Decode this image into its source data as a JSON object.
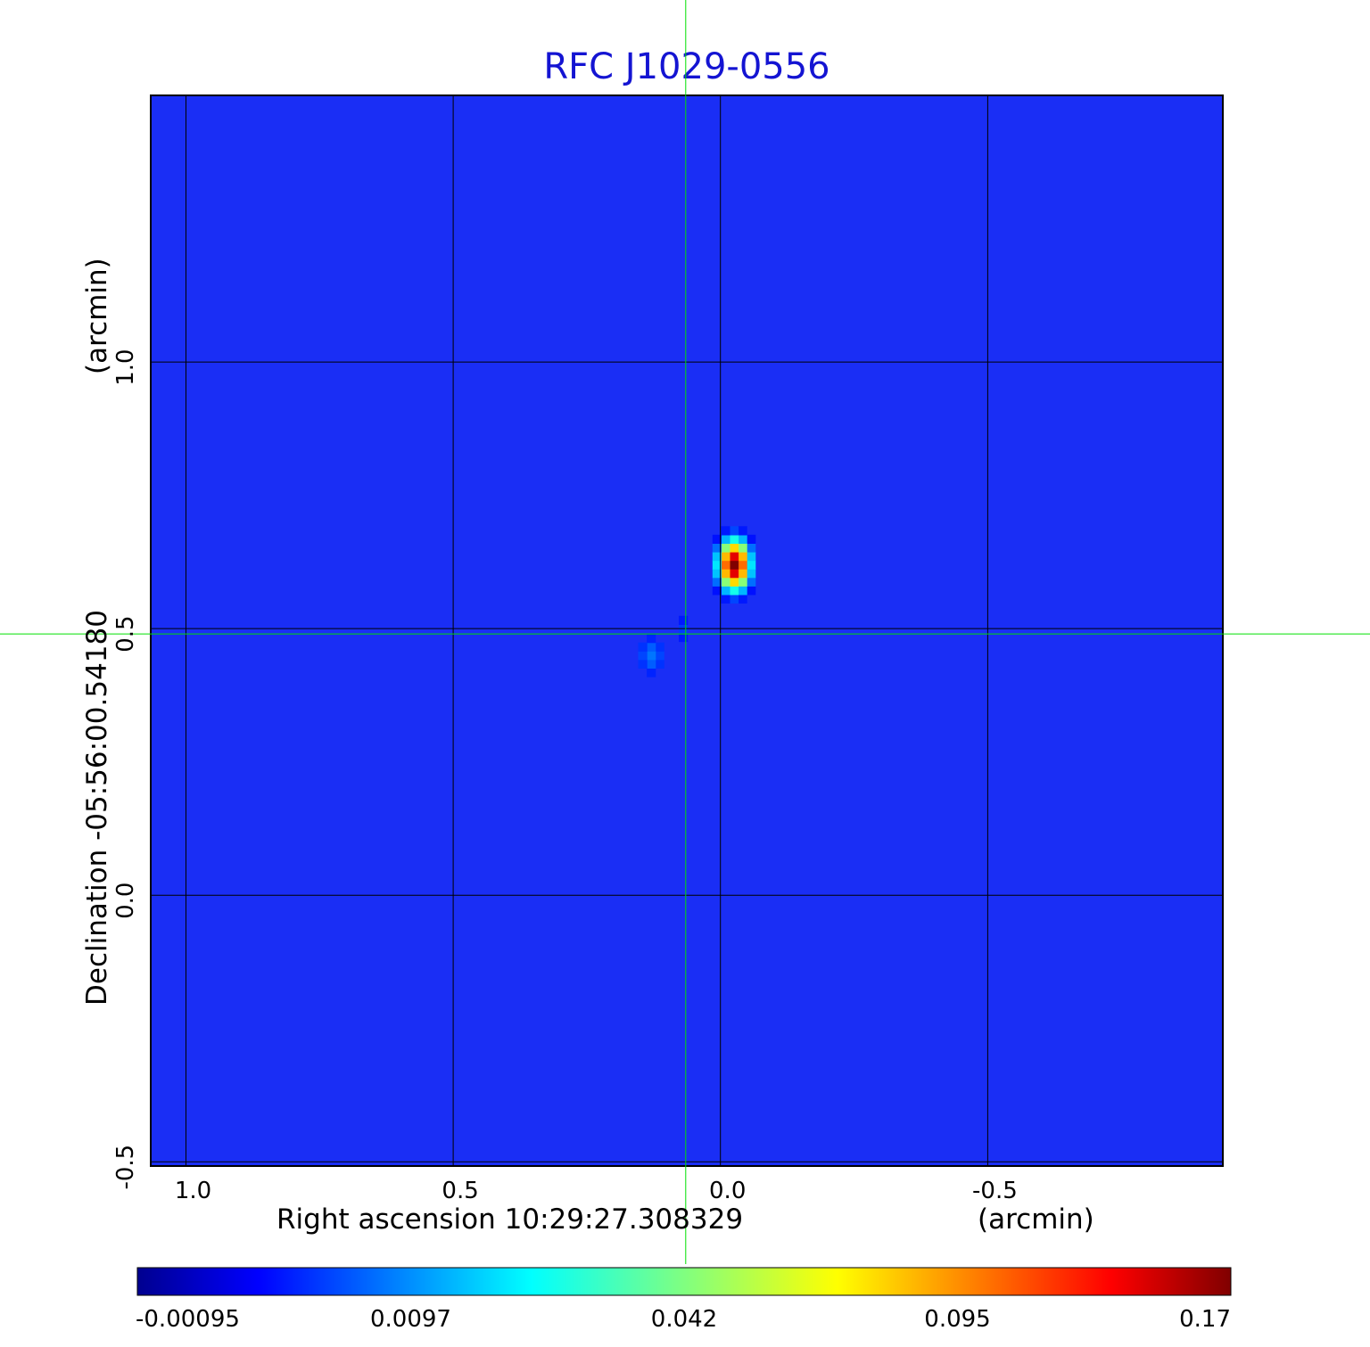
{
  "chart_data": {
    "type": "heatmap",
    "title": "RFC J1029-0556",
    "x_axis": {
      "label": "Right ascension  10:29:27.308329",
      "unit": "(arcmin)",
      "ticks": [
        1.0,
        0.5,
        0.0,
        -0.5
      ],
      "tick_labels": [
        "1.0",
        "0.5",
        "0.0",
        "-0.5"
      ],
      "range": [
        1.066,
        -0.94
      ]
    },
    "y_axis": {
      "label": "Declination  -05:56:00.54180",
      "unit": "(arcmin)",
      "ticks": [
        -0.5,
        0.0,
        0.5,
        1.0
      ],
      "tick_labels": [
        "-0.5",
        "0.0",
        "0.5",
        "1.0"
      ],
      "range": [
        -0.508,
        1.5
      ]
    },
    "grid": true,
    "crosshair": {
      "ra_offset": 0.065,
      "dec_offset": 0.49
    },
    "colorbar": {
      "colormap": "jet",
      "tick_labels": [
        "-0.00095",
        "0.0097",
        "0.042",
        "0.095",
        "0.17"
      ],
      "range": [
        -0.00095,
        0.17
      ]
    },
    "components": [
      {
        "ra_offset": -0.025,
        "dec_offset": 0.62,
        "peak": 0.17,
        "sigma_ra": 0.022,
        "sigma_dec": 0.035
      },
      {
        "ra_offset": 0.07,
        "dec_offset": 0.5,
        "peak": 0.03,
        "sigma_ra": 0.018,
        "sigma_dec": 0.025
      },
      {
        "ra_offset": 0.13,
        "dec_offset": 0.45,
        "peak": 0.04,
        "sigma_ra": 0.024,
        "sigma_dec": 0.035
      }
    ]
  },
  "colors": {
    "background": "#1a2ef5",
    "grid": "#000000",
    "crosshair": "#00e000",
    "title": "#1414d2"
  }
}
